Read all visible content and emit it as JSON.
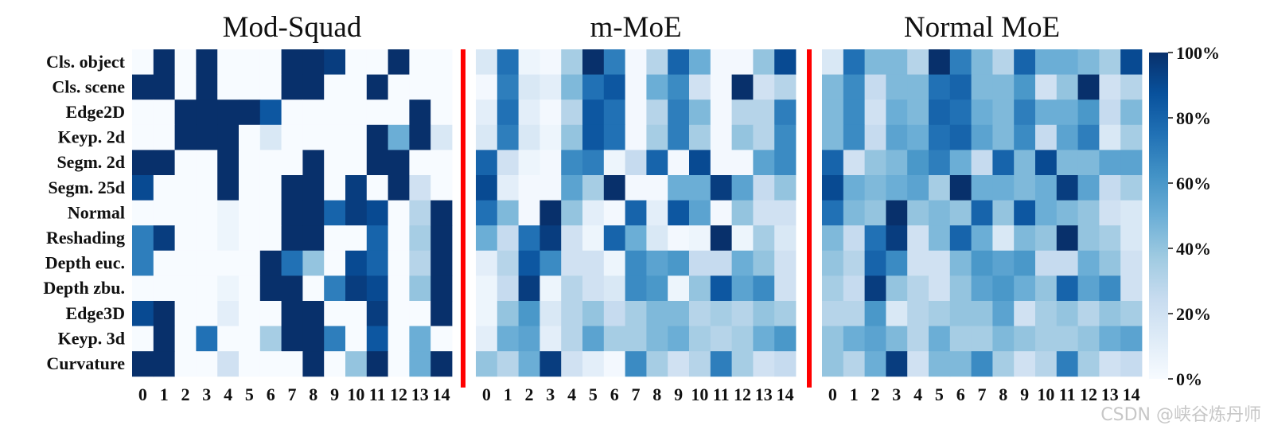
{
  "colors": {
    "cmap": [
      "#f7fbff",
      "#deebf7",
      "#c6dbef",
      "#9ecae1",
      "#6baed6",
      "#4292c6",
      "#2171b5",
      "#08519c",
      "#08306b"
    ],
    "separator": "#ff0000",
    "text": "#111111"
  },
  "watermark": "CSDN @峡谷炼丹师",
  "chart_data": {
    "type": "heatmap",
    "rows": [
      "Cls. object",
      "Cls. scene",
      "Edge2D",
      "Keyp. 2d",
      "Segm. 2d",
      "Segm. 25d",
      "Normal",
      "Reshading",
      "Depth euc.",
      "Depth zbu.",
      "Edge3D",
      "Keyp. 3d",
      "Curvature"
    ],
    "columns": [
      "0",
      "1",
      "2",
      "3",
      "4",
      "5",
      "6",
      "7",
      "8",
      "9",
      "10",
      "11",
      "12",
      "13",
      "14"
    ],
    "colorbar": {
      "ticks": [
        "0%",
        "20%",
        "40%",
        "60%",
        "80%",
        "100%"
      ],
      "range": [
        0,
        100
      ]
    },
    "panels": [
      {
        "title": "Mod-Squad",
        "values": [
          [
            0,
            100,
            0,
            100,
            0,
            0,
            0,
            100,
            100,
            95,
            0,
            0,
            100,
            0,
            0
          ],
          [
            100,
            100,
            0,
            100,
            0,
            0,
            0,
            100,
            100,
            0,
            0,
            100,
            0,
            0,
            0
          ],
          [
            0,
            0,
            100,
            100,
            100,
            100,
            85,
            0,
            0,
            0,
            0,
            0,
            0,
            100,
            0
          ],
          [
            0,
            0,
            100,
            100,
            100,
            0,
            15,
            0,
            0,
            0,
            0,
            100,
            50,
            100,
            15
          ],
          [
            100,
            100,
            0,
            0,
            100,
            0,
            0,
            0,
            100,
            0,
            0,
            100,
            100,
            0,
            0
          ],
          [
            90,
            0,
            0,
            0,
            100,
            0,
            0,
            100,
            100,
            0,
            95,
            0,
            100,
            20,
            0
          ],
          [
            0,
            0,
            0,
            0,
            5,
            0,
            0,
            100,
            100,
            80,
            95,
            90,
            0,
            30,
            100
          ],
          [
            70,
            95,
            0,
            0,
            5,
            0,
            0,
            100,
            100,
            0,
            0,
            80,
            0,
            35,
            100
          ],
          [
            70,
            0,
            0,
            0,
            0,
            0,
            100,
            75,
            40,
            0,
            90,
            80,
            0,
            30,
            100
          ],
          [
            0,
            0,
            0,
            0,
            5,
            0,
            100,
            100,
            0,
            70,
            95,
            90,
            0,
            40,
            100
          ],
          [
            90,
            100,
            0,
            0,
            10,
            0,
            0,
            100,
            100,
            0,
            0,
            95,
            0,
            0,
            100
          ],
          [
            0,
            100,
            0,
            75,
            0,
            0,
            35,
            100,
            100,
            70,
            0,
            85,
            0,
            50,
            0
          ],
          [
            100,
            100,
            0,
            0,
            20,
            0,
            0,
            0,
            100,
            0,
            40,
            100,
            0,
            50,
            100
          ]
        ]
      },
      {
        "title": "m-MoE",
        "values": [
          [
            15,
            75,
            5,
            2,
            35,
            100,
            70,
            2,
            30,
            80,
            50,
            2,
            2,
            40,
            90
          ],
          [
            2,
            70,
            15,
            10,
            45,
            75,
            85,
            2,
            50,
            65,
            20,
            2,
            100,
            20,
            30
          ],
          [
            10,
            75,
            10,
            2,
            30,
            85,
            75,
            2,
            30,
            70,
            45,
            2,
            30,
            30,
            70
          ],
          [
            15,
            70,
            15,
            5,
            40,
            85,
            75,
            2,
            35,
            70,
            35,
            2,
            40,
            30,
            65
          ],
          [
            80,
            20,
            5,
            2,
            65,
            70,
            5,
            25,
            80,
            2,
            90,
            2,
            2,
            55,
            65
          ],
          [
            90,
            10,
            2,
            2,
            55,
            35,
            100,
            2,
            2,
            50,
            50,
            95,
            55,
            25,
            40
          ],
          [
            75,
            45,
            2,
            100,
            40,
            10,
            2,
            80,
            10,
            85,
            55,
            2,
            40,
            20,
            20
          ],
          [
            50,
            25,
            75,
            95,
            20,
            5,
            80,
            50,
            15,
            2,
            5,
            100,
            5,
            35,
            15
          ],
          [
            10,
            30,
            85,
            65,
            20,
            20,
            5,
            65,
            55,
            60,
            25,
            25,
            50,
            40,
            20
          ],
          [
            5,
            25,
            95,
            5,
            30,
            20,
            15,
            65,
            60,
            5,
            40,
            85,
            55,
            65,
            20
          ],
          [
            5,
            40,
            60,
            15,
            30,
            40,
            25,
            35,
            45,
            45,
            30,
            35,
            30,
            40,
            35
          ],
          [
            10,
            50,
            55,
            10,
            30,
            55,
            35,
            35,
            45,
            50,
            35,
            30,
            35,
            50,
            60
          ],
          [
            40,
            30,
            50,
            95,
            20,
            10,
            2,
            65,
            35,
            20,
            30,
            70,
            35,
            20,
            25
          ]
        ]
      },
      {
        "title": "Normal MoE",
        "values": [
          [
            15,
            75,
            45,
            45,
            30,
            100,
            70,
            45,
            30,
            80,
            50,
            50,
            45,
            35,
            90
          ],
          [
            45,
            65,
            25,
            45,
            45,
            75,
            80,
            45,
            45,
            60,
            20,
            40,
            100,
            20,
            30
          ],
          [
            45,
            65,
            20,
            50,
            45,
            80,
            75,
            50,
            45,
            70,
            50,
            50,
            60,
            25,
            45
          ],
          [
            45,
            65,
            25,
            55,
            50,
            75,
            80,
            55,
            45,
            65,
            25,
            55,
            70,
            15,
            35
          ],
          [
            80,
            20,
            40,
            45,
            60,
            70,
            50,
            25,
            80,
            45,
            90,
            45,
            45,
            55,
            55
          ],
          [
            90,
            50,
            45,
            50,
            55,
            35,
            100,
            50,
            50,
            45,
            50,
            95,
            55,
            25,
            35
          ],
          [
            75,
            45,
            40,
            100,
            40,
            45,
            40,
            80,
            40,
            85,
            50,
            45,
            40,
            20,
            15
          ],
          [
            45,
            25,
            75,
            95,
            20,
            45,
            80,
            50,
            15,
            45,
            40,
            100,
            40,
            35,
            15
          ],
          [
            40,
            30,
            80,
            65,
            20,
            20,
            45,
            60,
            55,
            60,
            25,
            25,
            50,
            40,
            20
          ],
          [
            35,
            25,
            95,
            40,
            30,
            20,
            40,
            55,
            60,
            50,
            40,
            80,
            55,
            65,
            20
          ],
          [
            30,
            30,
            60,
            15,
            30,
            35,
            40,
            40,
            55,
            20,
            35,
            40,
            30,
            40,
            35
          ],
          [
            40,
            50,
            55,
            45,
            30,
            50,
            35,
            35,
            45,
            40,
            35,
            35,
            40,
            50,
            55
          ],
          [
            40,
            30,
            50,
            95,
            20,
            45,
            45,
            65,
            35,
            20,
            30,
            70,
            35,
            20,
            25
          ]
        ]
      }
    ]
  }
}
